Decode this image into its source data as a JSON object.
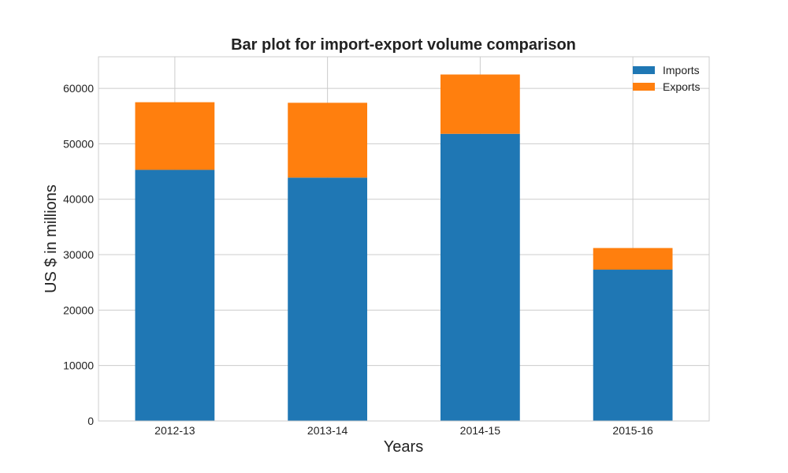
{
  "chart_data": {
    "type": "bar",
    "stacked": true,
    "title": "Bar plot for import-export volume comparison",
    "xlabel": "Years",
    "ylabel": "US $ in millions",
    "categories": [
      "2012-13",
      "2013-14",
      "2014-15",
      "2015-16"
    ],
    "series": [
      {
        "name": "Imports",
        "color": "#1f77b4",
        "values": [
          45300,
          43900,
          51800,
          27300
        ]
      },
      {
        "name": "Exports",
        "color": "#ff7f0e",
        "values": [
          12200,
          13500,
          10700,
          3900
        ]
      }
    ],
    "ylim": [
      0,
      65700
    ],
    "yticks": [
      0,
      10000,
      20000,
      30000,
      40000,
      50000,
      60000
    ],
    "grid": true,
    "legend_position": "top-right"
  }
}
